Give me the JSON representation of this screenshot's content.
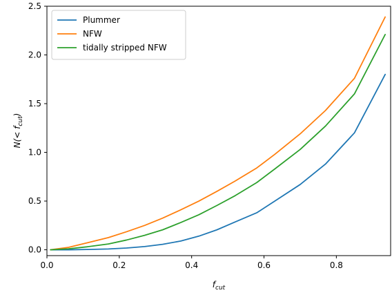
{
  "chart_data": {
    "type": "line",
    "xlabel": {
      "main": "f",
      "sub": "cut"
    },
    "ylabel": {
      "prefix": "N(< f",
      "sub": "cut",
      "suffix": ")"
    },
    "xlim": [
      0.0,
      0.95
    ],
    "ylim": [
      -0.06,
      2.5
    ],
    "xticks": [
      0.0,
      0.2,
      0.4,
      0.6,
      0.8
    ],
    "xtick_labels": [
      "0.0",
      "0.2",
      "0.4",
      "0.6",
      "0.8"
    ],
    "yticks": [
      0.0,
      0.5,
      1.0,
      1.5,
      2.0,
      2.5
    ],
    "ytick_labels": [
      "0.0",
      "0.5",
      "1.0",
      "1.5",
      "2.0",
      "2.5"
    ],
    "grid": false,
    "legend_position": "top-left",
    "series": [
      {
        "name": "Plummer",
        "color": "#1f77b4",
        "x": [
          0.01,
          0.06,
          0.11,
          0.17,
          0.22,
          0.27,
          0.32,
          0.37,
          0.42,
          0.47,
          0.52,
          0.58,
          0.63,
          0.7,
          0.77,
          0.85,
          0.935
        ],
        "y": [
          0.0,
          0.0,
          0.003,
          0.008,
          0.018,
          0.033,
          0.056,
          0.09,
          0.14,
          0.205,
          0.285,
          0.38,
          0.5,
          0.67,
          0.88,
          1.2,
          1.8
        ]
      },
      {
        "name": "NFW",
        "color": "#ff7f0e",
        "x": [
          0.01,
          0.06,
          0.11,
          0.17,
          0.22,
          0.27,
          0.32,
          0.37,
          0.42,
          0.47,
          0.52,
          0.58,
          0.63,
          0.7,
          0.77,
          0.85,
          0.935
        ],
        "y": [
          0.0,
          0.025,
          0.07,
          0.125,
          0.185,
          0.25,
          0.325,
          0.41,
          0.5,
          0.6,
          0.705,
          0.84,
          0.98,
          1.19,
          1.43,
          1.76,
          2.39
        ]
      },
      {
        "name": "tidally stripped NFW",
        "color": "#2ca02c",
        "x": [
          0.01,
          0.06,
          0.11,
          0.17,
          0.22,
          0.27,
          0.32,
          0.37,
          0.42,
          0.47,
          0.52,
          0.58,
          0.63,
          0.7,
          0.77,
          0.85,
          0.935
        ],
        "y": [
          0.0,
          0.01,
          0.03,
          0.06,
          0.1,
          0.148,
          0.205,
          0.28,
          0.36,
          0.455,
          0.555,
          0.69,
          0.83,
          1.03,
          1.27,
          1.6,
          2.21
        ]
      }
    ]
  }
}
